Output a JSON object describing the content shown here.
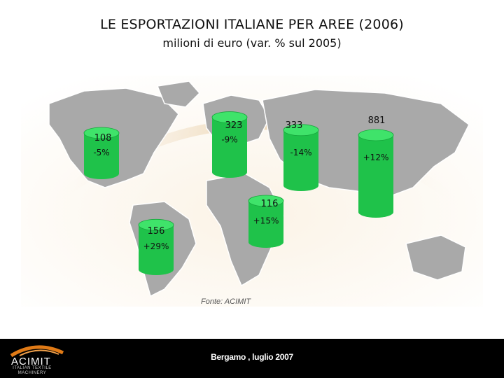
{
  "chart_data": {
    "type": "bar",
    "title": "LE ESPORTAZIONI ITALIANE PER AREE (2006)",
    "subtitle": "milioni di euro (var. % sul 2005)",
    "categories": [
      "",
      "",
      "",
      "",
      "",
      ""
    ],
    "values": [
      108,
      156,
      323,
      116,
      333,
      881
    ],
    "changes": [
      "-5%",
      "+29%",
      "-9%",
      "+15%",
      "-14%",
      "+12%"
    ],
    "value_labels": [
      "108",
      "156",
      "323",
      "116",
      "333",
      "881"
    ],
    "colors": {
      "cylinder": "#1fc24a",
      "cylinder_top": "#3fe36a",
      "map": "#a8a8a8"
    }
  },
  "source": "Fonte: ACIMIT",
  "footer": {
    "logo_main": "ACIMIT",
    "logo_sub_1": "ITALIAN TEXTILE",
    "logo_sub_2": "MACHINERY",
    "text": "Bergamo , luglio 2007"
  }
}
